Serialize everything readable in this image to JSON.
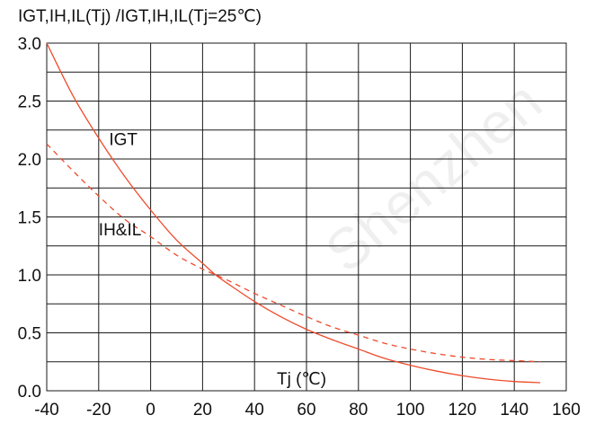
{
  "chart_data": {
    "type": "line",
    "title": "IGT,IH,IL(Tj) /IGT,IH,IL(Tj=25℃)",
    "xlabel": "Tj (℃)",
    "ylabel": "",
    "xlim": [
      -40,
      160
    ],
    "ylim": [
      0,
      3.0
    ],
    "xticks": [
      "-40",
      "-20",
      "0",
      "20",
      "40",
      "60",
      "80",
      "100",
      "120",
      "140",
      "160"
    ],
    "yticks": [
      "0.0",
      "0.5",
      "1.0",
      "1.5",
      "2.0",
      "2.5",
      "3.0"
    ],
    "x_grid_step": 20,
    "y_grid_step": 0.25,
    "grid": true,
    "series_color": "#ee4b2b",
    "watermark": "Shenzhen",
    "series": [
      {
        "name": "IGT",
        "style": "solid",
        "label_at": [
          -16,
          2.12
        ],
        "x": [
          -40,
          -30,
          -20,
          -10,
          0,
          10,
          20,
          25,
          30,
          40,
          50,
          60,
          70,
          80,
          90,
          100,
          110,
          120,
          130,
          140,
          150
        ],
        "y": [
          3.0,
          2.55,
          2.18,
          1.85,
          1.56,
          1.3,
          1.1,
          1.0,
          0.92,
          0.77,
          0.64,
          0.53,
          0.44,
          0.36,
          0.28,
          0.22,
          0.17,
          0.13,
          0.1,
          0.08,
          0.07
        ]
      },
      {
        "name": "IH&IL",
        "style": "dashed",
        "label_at": [
          -20,
          1.34
        ],
        "x": [
          -40,
          -30,
          -20,
          -10,
          0,
          10,
          20,
          25,
          30,
          40,
          50,
          60,
          70,
          80,
          90,
          100,
          110,
          120,
          130,
          140,
          150
        ],
        "y": [
          2.13,
          1.9,
          1.68,
          1.48,
          1.33,
          1.17,
          1.05,
          1.0,
          0.95,
          0.84,
          0.74,
          0.64,
          0.55,
          0.48,
          0.41,
          0.36,
          0.32,
          0.29,
          0.27,
          0.26,
          0.25
        ]
      }
    ]
  }
}
